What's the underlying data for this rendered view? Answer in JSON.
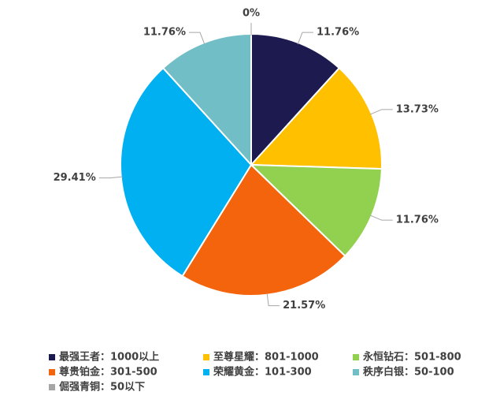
{
  "chart_data": {
    "type": "pie",
    "categories": [
      "最强王者：1000以上",
      "至尊星耀：801-1000",
      "永恒钻石：501-800",
      "尊贵铂金：301-500",
      "荣耀黄金：101-300",
      "秩序白银：50-100",
      "倔强青铜：50以下"
    ],
    "values": [
      11.76,
      13.73,
      11.76,
      21.57,
      29.41,
      11.76,
      0
    ],
    "value_labels": [
      "11.76%",
      "13.73%",
      "11.76%",
      "21.57%",
      "29.41%",
      "11.76%",
      "0%"
    ],
    "colors": [
      "#1c1a4e",
      "#ffc000",
      "#92d050",
      "#f4640c",
      "#00b0f0",
      "#72bec6",
      "#a5a5a5"
    ]
  }
}
